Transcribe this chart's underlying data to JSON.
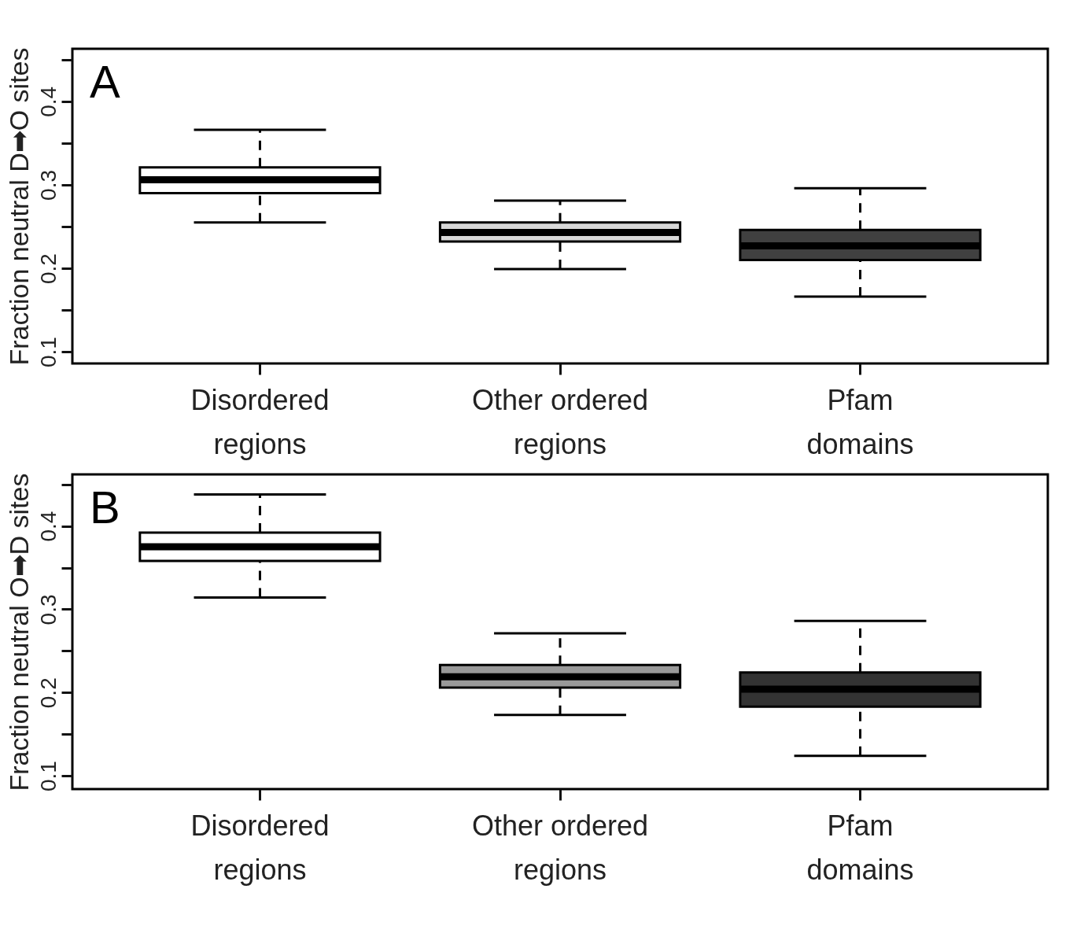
{
  "chart_data": [
    {
      "type": "box",
      "ylabel": "Fraction neutral D➡O sites",
      "annotations": [
        "A"
      ],
      "categories": [
        "Disordered regions",
        "Other ordered regions",
        "Pfam domains"
      ],
      "colors": [
        "#ffffff",
        "#d9d9d9",
        "#404040"
      ],
      "boxes": [
        {
          "low": 0.255,
          "q1": 0.29,
          "median": 0.306,
          "q3": 0.321,
          "high": 0.366
        },
        {
          "low": 0.199,
          "q1": 0.232,
          "median": 0.243,
          "q3": 0.255,
          "high": 0.281
        },
        {
          "low": 0.166,
          "q1": 0.21,
          "median": 0.227,
          "q3": 0.246,
          "high": 0.296
        }
      ],
      "ylim": [
        0.086,
        0.463
      ],
      "yticks": [
        0.1,
        {
          "value": 0.15,
          "label": null
        },
        0.2,
        {
          "value": 0.25,
          "label": null
        },
        0.3,
        {
          "value": 0.35,
          "label": null
        },
        0.4,
        {
          "value": 0.45,
          "label": null
        }
      ],
      "grid": false
    },
    {
      "type": "box",
      "ylabel": "Fraction neutral O➡D sites",
      "annotations": [
        "B"
      ],
      "categories": [
        "Disordered regions",
        "Other ordered regions",
        "Pfam domains"
      ],
      "colors": [
        "#ffffff",
        "#999999",
        "#333333"
      ],
      "boxes": [
        {
          "low": 0.314,
          "q1": 0.358,
          "median": 0.375,
          "q3": 0.392,
          "high": 0.438
        },
        {
          "low": 0.173,
          "q1": 0.206,
          "median": 0.219,
          "q3": 0.233,
          "high": 0.271
        },
        {
          "low": 0.124,
          "q1": 0.183,
          "median": 0.204,
          "q3": 0.224,
          "high": 0.286
        }
      ],
      "ylim": [
        0.084,
        0.462
      ],
      "yticks": [
        0.1,
        {
          "value": 0.15,
          "label": null
        },
        0.2,
        {
          "value": 0.25,
          "label": null
        },
        0.3,
        {
          "value": 0.35,
          "label": null
        },
        0.4,
        {
          "value": 0.45,
          "label": null
        }
      ],
      "grid": false
    }
  ]
}
